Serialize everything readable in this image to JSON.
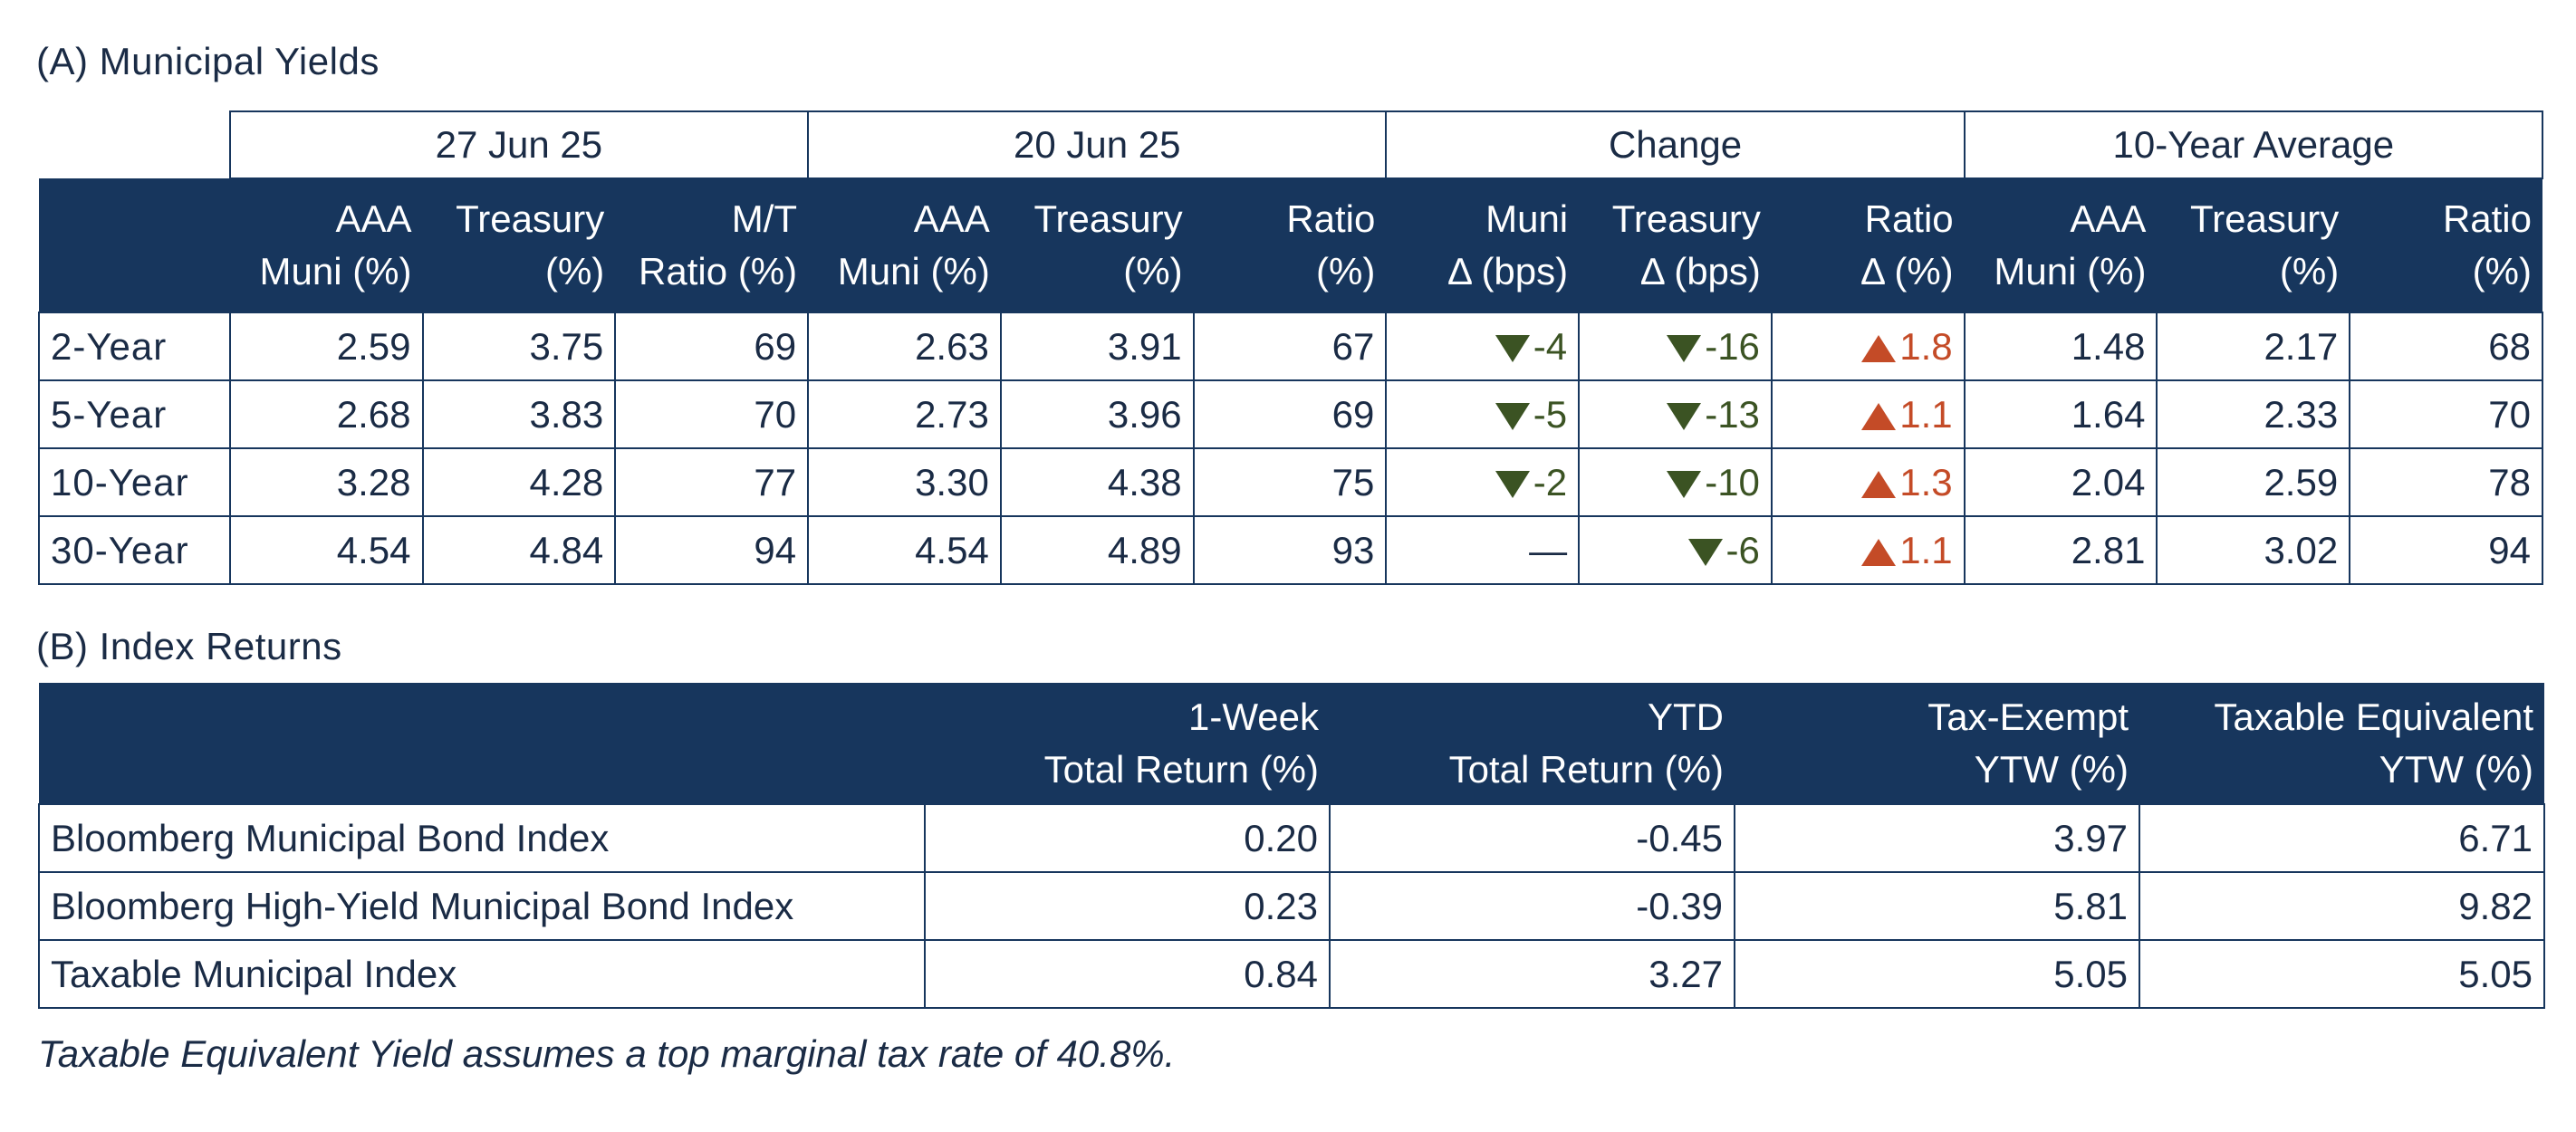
{
  "section_a_title": "(A) Municipal Yields",
  "section_b_title": "(B) Index Returns",
  "footnote": "Taxable Equivalent Yield assumes a top marginal tax rate of 40.8%.",
  "colors": {
    "header_bg": "#17365d",
    "down": "#3b5323",
    "up": "#c44b27"
  },
  "yields": {
    "groups": [
      "27 Jun 25",
      "20 Jun 25",
      "Change",
      "10-Year Average"
    ],
    "columns": [
      [
        "AAA",
        "Muni (%)"
      ],
      [
        "Treasury",
        "(%)"
      ],
      [
        "M/T",
        "Ratio (%)"
      ],
      [
        "AAA",
        "Muni (%)"
      ],
      [
        "Treasury",
        "(%)"
      ],
      [
        "Ratio",
        "(%)"
      ],
      [
        "Muni",
        "Δ (bps)"
      ],
      [
        "Treasury",
        "Δ (bps)"
      ],
      [
        "Ratio",
        "Δ (%)"
      ],
      [
        "AAA",
        "Muni (%)"
      ],
      [
        "Treasury",
        "(%)"
      ],
      [
        "Ratio",
        "(%)"
      ]
    ],
    "rows": [
      {
        "label": "2-Year",
        "cur": [
          "2.59",
          "3.75",
          "69"
        ],
        "prev": [
          "2.63",
          "3.91",
          "67"
        ],
        "chg": [
          {
            "dir": "down",
            "v": "-4"
          },
          {
            "dir": "down",
            "v": "-16"
          },
          {
            "dir": "up",
            "v": "1.8"
          }
        ],
        "avg": [
          "1.48",
          "2.17",
          "68"
        ]
      },
      {
        "label": "5-Year",
        "cur": [
          "2.68",
          "3.83",
          "70"
        ],
        "prev": [
          "2.73",
          "3.96",
          "69"
        ],
        "chg": [
          {
            "dir": "down",
            "v": "-5"
          },
          {
            "dir": "down",
            "v": "-13"
          },
          {
            "dir": "up",
            "v": "1.1"
          }
        ],
        "avg": [
          "1.64",
          "2.33",
          "70"
        ]
      },
      {
        "label": "10-Year",
        "cur": [
          "3.28",
          "4.28",
          "77"
        ],
        "prev": [
          "3.30",
          "4.38",
          "75"
        ],
        "chg": [
          {
            "dir": "down",
            "v": "-2"
          },
          {
            "dir": "down",
            "v": "-10"
          },
          {
            "dir": "up",
            "v": "1.3"
          }
        ],
        "avg": [
          "2.04",
          "2.59",
          "78"
        ]
      },
      {
        "label": "30-Year",
        "cur": [
          "4.54",
          "4.84",
          "94"
        ],
        "prev": [
          "4.54",
          "4.89",
          "93"
        ],
        "chg": [
          {
            "dir": "none",
            "v": "—"
          },
          {
            "dir": "down",
            "v": "-6"
          },
          {
            "dir": "up",
            "v": "1.1"
          }
        ],
        "avg": [
          "2.81",
          "3.02",
          "94"
        ]
      }
    ]
  },
  "returns": {
    "columns": [
      [
        "1-Week",
        "Total Return (%)"
      ],
      [
        "YTD",
        "Total Return (%)"
      ],
      [
        "Tax-Exempt",
        "YTW (%)"
      ],
      [
        "Taxable Equivalent",
        "YTW (%)"
      ]
    ],
    "rows": [
      {
        "label": "Bloomberg Municipal Bond Index",
        "values": [
          "0.20",
          "-0.45",
          "3.97",
          "6.71"
        ]
      },
      {
        "label": "Bloomberg High-Yield Municipal Bond Index",
        "values": [
          "0.23",
          "-0.39",
          "5.81",
          "9.82"
        ]
      },
      {
        "label": "Taxable Municipal Index",
        "values": [
          "0.84",
          "3.27",
          "5.05",
          "5.05"
        ]
      }
    ]
  }
}
